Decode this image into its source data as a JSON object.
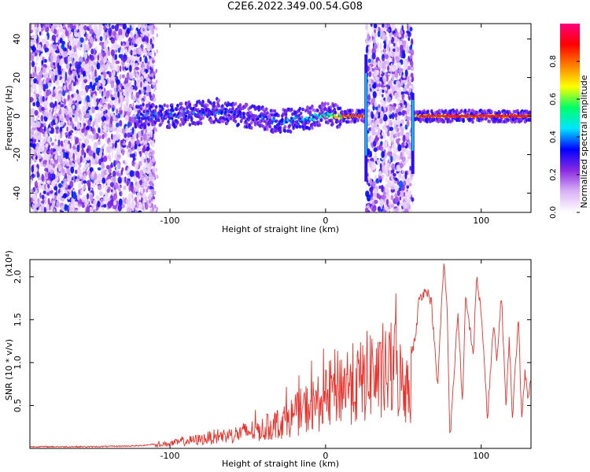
{
  "title": "C2E6.2022.349.00.54.G08",
  "chart_data": [
    {
      "type": "heatmap",
      "title": "C2E6.2022.349.00.54.G08",
      "xlabel": "Height of straight line (km)",
      "ylabel": "Frequency (Hz)",
      "xlim": [
        -190,
        132
      ],
      "ylim": [
        -50,
        48
      ],
      "xticks": [
        -100,
        0,
        100
      ],
      "yticks": [
        -40,
        -20,
        0,
        20,
        40
      ],
      "colorbar": {
        "label": "Normalized spectral amplitude",
        "range": [
          0,
          1
        ],
        "ticks": [
          "0.0",
          "0.2",
          "0.4",
          "0.6",
          "0.8"
        ],
        "colors": [
          "#ffffff",
          "#d9b3f5",
          "#8a2be2",
          "#0000ff",
          "#00e5ff",
          "#00ff66",
          "#ffff00",
          "#ff8000",
          "#ff0000",
          "#ff0080"
        ]
      },
      "noise_regions_km": [
        [
          -190,
          -110
        ],
        [
          26,
          56
        ]
      ],
      "signal_track": [
        {
          "x": -122,
          "f": 0,
          "amp": 0.45
        },
        {
          "x": -100,
          "f": 0,
          "amp": 0.4
        },
        {
          "x": -70,
          "f": 3,
          "amp": 0.45
        },
        {
          "x": -50,
          "f": 0,
          "amp": 0.4
        },
        {
          "x": -30,
          "f": -3,
          "amp": 0.5
        },
        {
          "x": -10,
          "f": -1,
          "amp": 0.55
        },
        {
          "x": 0,
          "f": 1,
          "amp": 0.6
        },
        {
          "x": 10,
          "f": 0,
          "amp": 0.8
        },
        {
          "x": 24,
          "f": 0,
          "amp": 0.9
        },
        {
          "x": 60,
          "f": 0,
          "amp": 0.85
        },
        {
          "x": 90,
          "f": 0,
          "amp": 0.9
        },
        {
          "x": 132,
          "f": 0,
          "amp": 0.9
        }
      ]
    },
    {
      "type": "line",
      "xlabel": "Height of straight line (km)",
      "ylabel": "SNR (10 * v/v)",
      "scale_label": "(x10⁴)",
      "xlim": [
        -190,
        132
      ],
      "ylim": [
        0,
        2.2
      ],
      "xticks": [
        -100,
        0,
        100
      ],
      "yticks": [
        "0.5",
        "1.0",
        "1.5",
        "2.0"
      ],
      "color": "#e8322c",
      "series": [
        {
          "name": "SNR",
          "x": [
            -190,
            -150,
            -120,
            -110,
            -100,
            -90,
            -80,
            -70,
            -60,
            -50,
            -40,
            -30,
            -20,
            -10,
            0,
            5,
            10,
            15,
            20,
            25,
            30,
            35,
            40,
            45,
            50,
            55,
            58,
            60,
            65,
            68,
            72,
            74,
            76,
            78,
            80,
            85,
            88,
            90,
            95,
            97,
            100,
            104,
            108,
            110,
            113,
            116,
            118,
            120,
            122,
            124,
            126,
            128,
            130,
            132
          ],
          "values": [
            0.02,
            0.02,
            0.03,
            0.05,
            0.08,
            0.12,
            0.15,
            0.2,
            0.22,
            0.28,
            0.32,
            0.42,
            0.55,
            0.7,
            0.8,
            1.0,
            1.05,
            1.1,
            1.05,
            1.15,
            1.3,
            1.1,
            1.25,
            1.35,
            1.0,
            1.1,
            1.3,
            1.75,
            1.85,
            1.7,
            0.7,
            1.5,
            2.15,
            1.7,
            0.1,
            1.6,
            0.5,
            1.75,
            1.1,
            2.0,
            1.6,
            0.35,
            1.45,
            1.0,
            1.8,
            0.45,
            1.3,
            0.35,
            0.95,
            1.55,
            0.3,
            0.9,
            0.6,
            0.85
          ]
        }
      ]
    }
  ]
}
